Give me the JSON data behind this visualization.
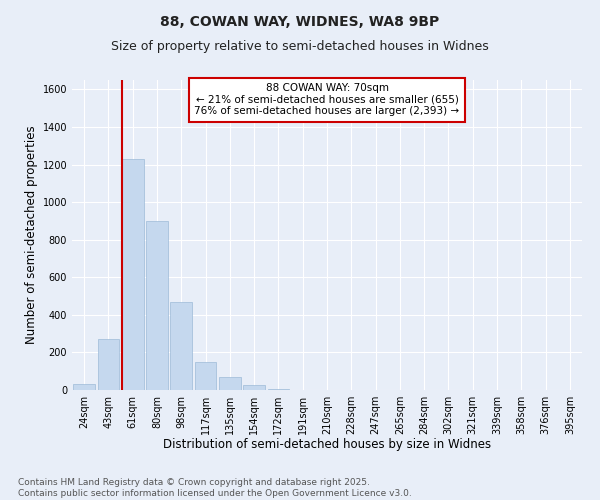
{
  "title_line1": "88, COWAN WAY, WIDNES, WA8 9BP",
  "title_line2": "Size of property relative to semi-detached houses in Widnes",
  "xlabel": "Distribution of semi-detached houses by size in Widnes",
  "ylabel": "Number of semi-detached properties",
  "categories": [
    "24sqm",
    "43sqm",
    "61sqm",
    "80sqm",
    "98sqm",
    "117sqm",
    "135sqm",
    "154sqm",
    "172sqm",
    "191sqm",
    "210sqm",
    "228sqm",
    "247sqm",
    "265sqm",
    "284sqm",
    "302sqm",
    "321sqm",
    "339sqm",
    "358sqm",
    "376sqm",
    "395sqm"
  ],
  "values": [
    30,
    270,
    1230,
    900,
    470,
    150,
    70,
    25,
    5,
    2,
    1,
    0,
    0,
    0,
    0,
    0,
    0,
    0,
    0,
    0,
    0
  ],
  "bar_color": "#c5d8ee",
  "bar_edge_color": "#9dbbd8",
  "property_line_index": 2,
  "annotation_text": "88 COWAN WAY: 70sqm\n← 21% of semi-detached houses are smaller (655)\n76% of semi-detached houses are larger (2,393) →",
  "annotation_box_facecolor": "#ffffff",
  "annotation_box_edgecolor": "#cc0000",
  "property_line_color": "#cc0000",
  "ylim": [
    0,
    1650
  ],
  "yticks": [
    0,
    200,
    400,
    600,
    800,
    1000,
    1200,
    1400,
    1600
  ],
  "footnote": "Contains HM Land Registry data © Crown copyright and database right 2025.\nContains public sector information licensed under the Open Government Licence v3.0.",
  "background_color": "#e8eef8",
  "plot_background": "#e8eef8",
  "grid_color": "#ffffff",
  "title_fontsize": 10,
  "subtitle_fontsize": 9,
  "axis_label_fontsize": 8.5,
  "tick_fontsize": 7,
  "annotation_fontsize": 7.5,
  "footnote_fontsize": 6.5
}
